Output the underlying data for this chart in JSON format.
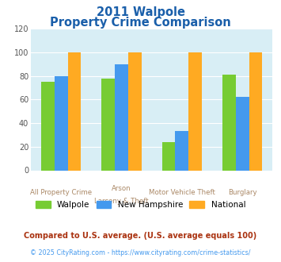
{
  "title_line1": "2011 Walpole",
  "title_line2": "Property Crime Comparison",
  "categories_line1": [
    "All Property Crime",
    "Arson",
    "Motor Vehicle Theft",
    "Burglary"
  ],
  "categories_line2": [
    "",
    "Larceny & Theft",
    "",
    ""
  ],
  "series": {
    "Walpole": [
      75,
      78,
      24,
      81
    ],
    "New Hampshire": [
      80,
      90,
      33,
      62
    ],
    "National": [
      100,
      100,
      100,
      100
    ]
  },
  "colors": {
    "Walpole": "#77cc33",
    "New Hampshire": "#4499ee",
    "National": "#ffaa22"
  },
  "ylim": [
    0,
    120
  ],
  "yticks": [
    0,
    20,
    40,
    60,
    80,
    100,
    120
  ],
  "bar_width": 0.22,
  "plot_bg": "#d8eef5",
  "title_color": "#1a5faa",
  "xlabel_color": "#aa8866",
  "footnote1": "Compared to U.S. average. (U.S. average equals 100)",
  "footnote2": "© 2025 CityRating.com - https://www.cityrating.com/crime-statistics/",
  "footnote1_color": "#aa3311",
  "footnote2_color": "#4499ee"
}
